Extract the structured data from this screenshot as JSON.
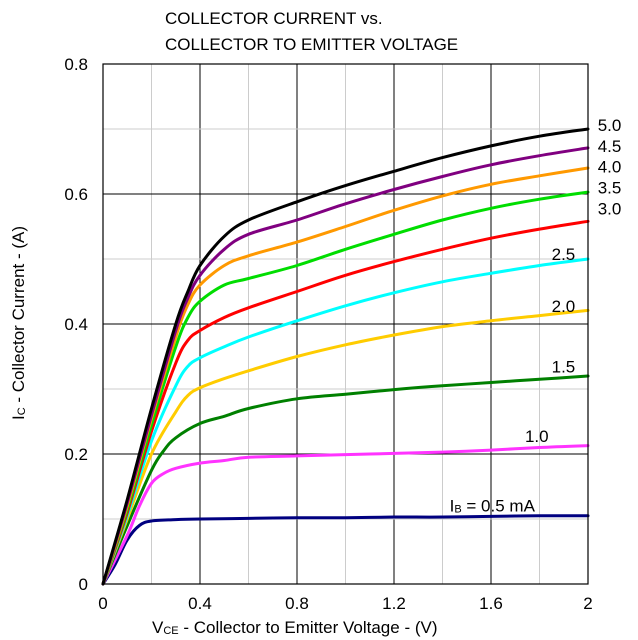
{
  "chart_data": {
    "type": "line",
    "title_lines": [
      "COLLECTOR CURRENT vs.",
      "COLLECTOR TO EMITTER VOLTAGE"
    ],
    "xlabel": {
      "main": "V",
      "sub": "CE",
      "rest": " - Collector to Emitter Voltage - (V)"
    },
    "ylabel": {
      "main": "I",
      "sub": "C",
      "rest": " - Collector Current - (A)"
    },
    "xlim": [
      0,
      2
    ],
    "ylim": [
      0,
      0.8
    ],
    "x_ticks": [
      {
        "value": 0,
        "label": "0"
      },
      {
        "value": 0.4,
        "label": "0.4"
      },
      {
        "value": 0.8,
        "label": "0.8"
      },
      {
        "value": 1.2,
        "label": "1.2"
      },
      {
        "value": 1.6,
        "label": "1.6"
      },
      {
        "value": 2,
        "label": "2"
      }
    ],
    "y_ticks": [
      {
        "value": 0,
        "label": "0"
      },
      {
        "value": 0.2,
        "label": "0.2"
      },
      {
        "value": 0.4,
        "label": "0.4"
      },
      {
        "value": 0.6,
        "label": "0.6"
      },
      {
        "value": 0.8,
        "label": "0.8"
      }
    ],
    "grid": {
      "major": true,
      "minor": true
    },
    "series": [
      {
        "name": "5.0",
        "color": "#000000",
        "label_x": 2.04,
        "label_y": 0.706,
        "x": [
          0,
          0.1,
          0.2,
          0.3,
          0.35,
          0.4,
          0.5,
          0.6,
          0.8,
          1.0,
          1.2,
          1.4,
          1.6,
          1.8,
          2.0
        ],
        "y": [
          0,
          0.13,
          0.27,
          0.4,
          0.45,
          0.49,
          0.535,
          0.56,
          0.588,
          0.613,
          0.635,
          0.656,
          0.674,
          0.689,
          0.7
        ]
      },
      {
        "name": "4.5",
        "color": "#800080",
        "label_x": 2.04,
        "label_y": 0.674,
        "x": [
          0,
          0.1,
          0.2,
          0.3,
          0.35,
          0.4,
          0.5,
          0.6,
          0.8,
          1.0,
          1.2,
          1.4,
          1.6,
          1.8,
          2.0
        ],
        "y": [
          0,
          0.125,
          0.26,
          0.39,
          0.44,
          0.475,
          0.515,
          0.538,
          0.56,
          0.585,
          0.607,
          0.627,
          0.645,
          0.659,
          0.671
        ]
      },
      {
        "name": "4.0",
        "color": "#ff9900",
        "label_x": 2.04,
        "label_y": 0.642,
        "x": [
          0,
          0.1,
          0.2,
          0.3,
          0.35,
          0.4,
          0.5,
          0.6,
          0.8,
          1.0,
          1.2,
          1.4,
          1.6,
          1.8,
          2.0
        ],
        "y": [
          0,
          0.12,
          0.255,
          0.38,
          0.43,
          0.46,
          0.49,
          0.505,
          0.526,
          0.55,
          0.575,
          0.597,
          0.615,
          0.628,
          0.64
        ]
      },
      {
        "name": "3.5",
        "color": "#00dd00",
        "label_x": 2.04,
        "label_y": 0.61,
        "x": [
          0,
          0.1,
          0.2,
          0.3,
          0.35,
          0.4,
          0.5,
          0.6,
          0.8,
          1.0,
          1.2,
          1.4,
          1.6,
          1.8,
          2.0
        ],
        "y": [
          0,
          0.115,
          0.245,
          0.365,
          0.41,
          0.435,
          0.46,
          0.47,
          0.49,
          0.515,
          0.538,
          0.56,
          0.578,
          0.592,
          0.603
        ]
      },
      {
        "name": "3.0",
        "color": "#ff0000",
        "label_x": 2.04,
        "label_y": 0.578,
        "x": [
          0,
          0.1,
          0.2,
          0.3,
          0.35,
          0.4,
          0.5,
          0.6,
          0.8,
          1.0,
          1.2,
          1.4,
          1.6,
          1.8,
          2.0
        ],
        "y": [
          0,
          0.11,
          0.235,
          0.34,
          0.375,
          0.39,
          0.41,
          0.425,
          0.45,
          0.475,
          0.496,
          0.515,
          0.532,
          0.546,
          0.558
        ]
      },
      {
        "name": "2.5",
        "color": "#00ffff",
        "label_x": 1.85,
        "label_y": 0.508,
        "x": [
          0,
          0.1,
          0.2,
          0.3,
          0.35,
          0.4,
          0.5,
          0.6,
          0.8,
          1.0,
          1.2,
          1.4,
          1.6,
          1.8,
          2.0
        ],
        "y": [
          0,
          0.105,
          0.22,
          0.305,
          0.335,
          0.348,
          0.365,
          0.38,
          0.405,
          0.428,
          0.448,
          0.465,
          0.478,
          0.49,
          0.5
        ]
      },
      {
        "name": "2.0",
        "color": "#ffcc00",
        "label_x": 1.85,
        "label_y": 0.428,
        "x": [
          0,
          0.1,
          0.2,
          0.3,
          0.35,
          0.4,
          0.5,
          0.6,
          0.8,
          1.0,
          1.2,
          1.4,
          1.6,
          1.8,
          2.0
        ],
        "y": [
          0,
          0.1,
          0.2,
          0.265,
          0.29,
          0.302,
          0.316,
          0.328,
          0.35,
          0.368,
          0.383,
          0.396,
          0.405,
          0.413,
          0.421
        ]
      },
      {
        "name": "1.5",
        "color": "#008000",
        "label_x": 1.85,
        "label_y": 0.335,
        "x": [
          0,
          0.1,
          0.2,
          0.25,
          0.3,
          0.4,
          0.5,
          0.6,
          0.8,
          1.0,
          1.2,
          1.4,
          1.6,
          1.8,
          2.0
        ],
        "y": [
          0,
          0.09,
          0.175,
          0.205,
          0.225,
          0.247,
          0.258,
          0.27,
          0.285,
          0.292,
          0.299,
          0.305,
          0.31,
          0.315,
          0.32
        ]
      },
      {
        "name": "1.0",
        "color": "#ff33ff",
        "label_x": 1.74,
        "label_y": 0.228,
        "x": [
          0,
          0.1,
          0.15,
          0.2,
          0.25,
          0.3,
          0.4,
          0.5,
          0.6,
          0.8,
          1.0,
          1.2,
          1.4,
          1.6,
          1.8,
          2.0
        ],
        "y": [
          0,
          0.075,
          0.12,
          0.155,
          0.17,
          0.178,
          0.186,
          0.19,
          0.195,
          0.197,
          0.199,
          0.201,
          0.203,
          0.206,
          0.21,
          0.213
        ]
      },
      {
        "name": "0.5",
        "color": "#000080",
        "label_x": 1.52,
        "label_y": 0.121,
        "x": [
          0,
          0.05,
          0.1,
          0.15,
          0.2,
          0.3,
          0.4,
          0.6,
          0.8,
          1.0,
          1.2,
          1.4,
          1.6,
          1.8,
          2.0
        ],
        "y": [
          0,
          0.03,
          0.068,
          0.09,
          0.097,
          0.099,
          0.1,
          0.101,
          0.102,
          0.102,
          0.103,
          0.103,
          0.104,
          0.105,
          0.105
        ]
      }
    ],
    "annotations": [
      {
        "kind": "ib-label",
        "main": "I",
        "sub": "B",
        "rest": " = 0.5 mA"
      }
    ]
  }
}
